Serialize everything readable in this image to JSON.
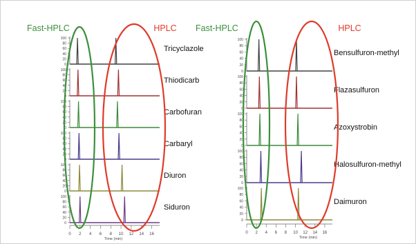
{
  "chart_data": [
    {
      "type": "line",
      "xlabel": "Time (min)",
      "xlim": [
        0,
        17
      ],
      "xticks": [
        "0",
        "2",
        "4",
        "6",
        "8",
        "10",
        "12",
        "14",
        "16"
      ],
      "ylim": [
        0,
        100
      ],
      "yticks": [
        "0",
        "20",
        "40",
        "60",
        "80",
        "100"
      ],
      "group_labels": {
        "fast": "Fast-HPLC",
        "hplc": "HPLC"
      },
      "series": [
        {
          "name": "Tricyclazole",
          "fast_rt": 1.5,
          "hplc_rt": 9.0,
          "color": "#404040"
        },
        {
          "name": "Thiodicarb",
          "fast_rt": 1.6,
          "hplc_rt": 9.5,
          "color": "#a03030"
        },
        {
          "name": "Carbofuran",
          "fast_rt": 1.7,
          "hplc_rt": 9.3,
          "color": "#3a8a3a"
        },
        {
          "name": "Carbaryl",
          "fast_rt": 1.8,
          "hplc_rt": 9.6,
          "color": "#4a3a8a"
        },
        {
          "name": "Diuron",
          "fast_rt": 1.9,
          "hplc_rt": 10.2,
          "color": "#8a8a3a"
        },
        {
          "name": "Siduron",
          "fast_rt": 2.0,
          "hplc_rt": 10.7,
          "color": "#6a3a8a"
        }
      ]
    },
    {
      "type": "line",
      "xlabel": "Time (min)",
      "xlim": [
        0,
        17
      ],
      "xticks": [
        "0",
        "2",
        "4",
        "6",
        "8",
        "10",
        "12",
        "14",
        "16"
      ],
      "ylim": [
        0,
        100
      ],
      "yticks": [
        "0",
        "20",
        "40",
        "60",
        "80",
        "100"
      ],
      "group_labels": {
        "fast": "Fast-HPLC",
        "hplc": "HPLC"
      },
      "series": [
        {
          "name": "Bensulfuron-methyl",
          "fast_rt": 2.5,
          "hplc_rt": 10.2,
          "color": "#404040"
        },
        {
          "name": "Flazasulfuron",
          "fast_rt": 2.6,
          "hplc_rt": 10.2,
          "color": "#a03030"
        },
        {
          "name": "Azoxystrobin",
          "fast_rt": 2.7,
          "hplc_rt": 10.5,
          "color": "#3a8a3a"
        },
        {
          "name": "Halosulfuron-methyl",
          "fast_rt": 2.9,
          "hplc_rt": 11.2,
          "color": "#4a3a8a"
        },
        {
          "name": "Daimuron",
          "fast_rt": 3.0,
          "hplc_rt": 10.6,
          "color": "#8a8a3a"
        }
      ]
    }
  ],
  "colors": {
    "fast_ellipse": "#3c8f3c",
    "hplc_ellipse": "#e03a2a"
  }
}
